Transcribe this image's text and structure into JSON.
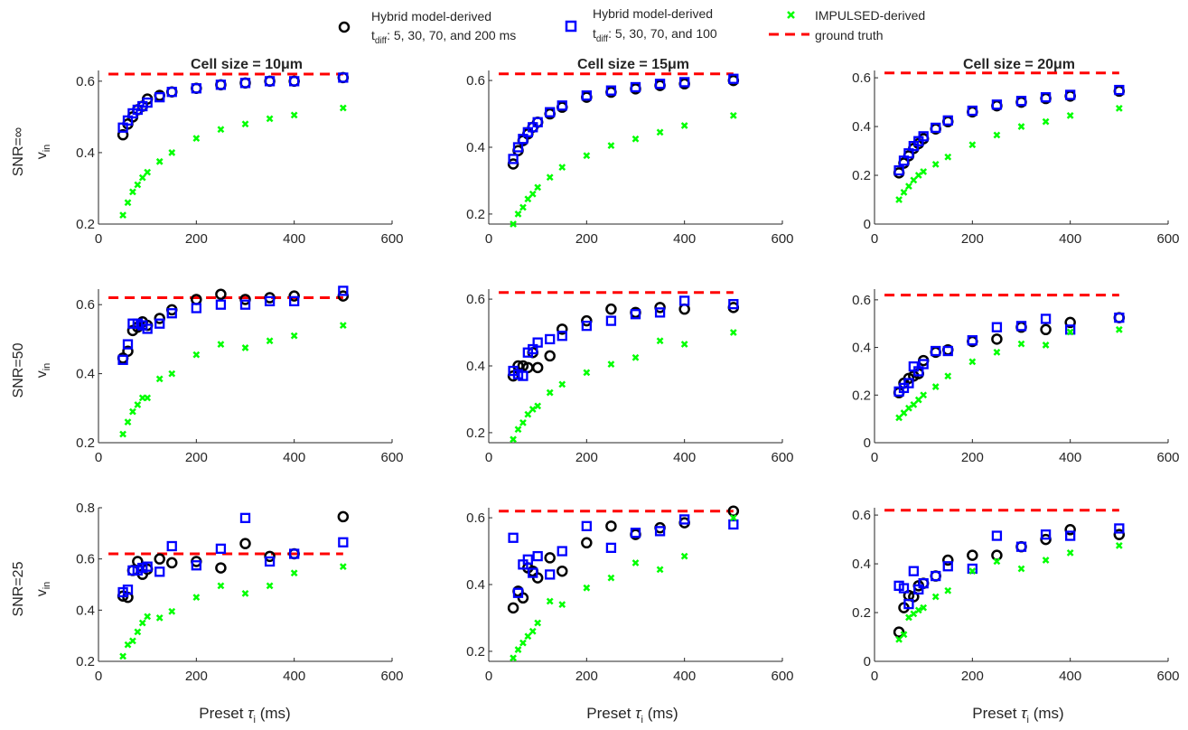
{
  "legend": {
    "items": [
      {
        "marker": "circle",
        "color": "#000000",
        "line1": "Hybrid model-derived",
        "line2_prefix": "t",
        "line2_sub": "diff",
        "line2_rest": ": 5, 30, 70, and 200 ms"
      },
      {
        "marker": "square",
        "color": "#0000ff",
        "line1": "Hybrid model-derived",
        "line2_prefix": "t",
        "line2_sub": "diff",
        "line2_rest": ": 5, 30, 70, and 100"
      },
      {
        "marker": "x",
        "color": "#00ff00",
        "line1": "IMPULSED-derived",
        "line2_prefix": "",
        "line2_sub": "",
        "line2_rest": ""
      },
      {
        "marker": "dash",
        "color": "#ff0000",
        "line1": "ground truth",
        "line2_prefix": "",
        "line2_sub": "",
        "line2_rest": ""
      }
    ]
  },
  "column_titles": [
    {
      "prefix": "Cell size = ",
      "value": "10",
      "unit": "μm"
    },
    {
      "prefix": "Cell size = ",
      "value": "15",
      "unit": "μm"
    },
    {
      "prefix": "Cell size = ",
      "value": "20",
      "unit": "μm"
    }
  ],
  "row_labels": [
    "SNR=∞",
    "SNR=50",
    "SNR=25"
  ],
  "ylabel": {
    "main": "v",
    "sub": "in"
  },
  "xlabel": {
    "main": "Preset ",
    "greek": "τ",
    "sub": "i",
    "rest": " (ms)"
  },
  "colors": {
    "hybrid200": "#000000",
    "hybrid100": "#0000ff",
    "impulsed": "#00ff00",
    "truth": "#ff0000",
    "axis": "#262626"
  },
  "chart_data": {
    "type": "scatter",
    "x": [
      50,
      60,
      70,
      80,
      90,
      100,
      125,
      150,
      200,
      250,
      300,
      350,
      400,
      500
    ],
    "xlim": [
      0,
      600
    ],
    "xticks": [
      0,
      200,
      400,
      600
    ],
    "ground_truth": 0.62,
    "ground_truth_x": [
      50,
      500
    ],
    "panels": [
      {
        "row": 0,
        "col": 0,
        "ylim": [
          0.2,
          0.63
        ],
        "yticks": [
          0.2,
          0.4,
          0.6
        ],
        "series": [
          {
            "name": "Hybrid model-derived (t_diff: 5, 30, 70, and 200 ms)",
            "marker": "circle",
            "values": [
              0.45,
              0.48,
              0.5,
              0.52,
              0.53,
              0.55,
              0.56,
              0.57,
              0.58,
              0.59,
              0.595,
              0.6,
              0.6,
              0.61
            ]
          },
          {
            "name": "Hybrid model-derived (t_diff: 5, 30, 70, and 100)",
            "marker": "square",
            "values": [
              0.47,
              0.49,
              0.51,
              0.52,
              0.53,
              0.54,
              0.555,
              0.57,
              0.58,
              0.59,
              0.595,
              0.6,
              0.6,
              0.61
            ]
          },
          {
            "name": "IMPULSED-derived",
            "marker": "x",
            "values": [
              0.225,
              0.26,
              0.29,
              0.31,
              0.33,
              0.345,
              0.375,
              0.4,
              0.44,
              0.465,
              0.48,
              0.495,
              0.505,
              0.525
            ]
          }
        ]
      },
      {
        "row": 0,
        "col": 1,
        "ylim": [
          0.17,
          0.63
        ],
        "yticks": [
          0.2,
          0.4,
          0.6
        ],
        "series": [
          {
            "name": "Hybrid model-derived (t_diff: 5, 30, 70, and 200 ms)",
            "marker": "circle",
            "values": [
              0.35,
              0.39,
              0.42,
              0.44,
              0.46,
              0.475,
              0.5,
              0.52,
              0.55,
              0.565,
              0.575,
              0.585,
              0.59,
              0.6
            ]
          },
          {
            "name": "Hybrid model-derived (t_diff: 5, 30, 70, and 100)",
            "marker": "square",
            "values": [
              0.365,
              0.4,
              0.425,
              0.445,
              0.46,
              0.475,
              0.505,
              0.525,
              0.555,
              0.57,
              0.58,
              0.59,
              0.595,
              0.605
            ]
          },
          {
            "name": "IMPULSED-derived",
            "marker": "x",
            "values": [
              0.17,
              0.2,
              0.22,
              0.245,
              0.26,
              0.28,
              0.31,
              0.34,
              0.375,
              0.405,
              0.425,
              0.445,
              0.465,
              0.495
            ]
          }
        ]
      },
      {
        "row": 0,
        "col": 2,
        "ylim": [
          0,
          0.63
        ],
        "yticks": [
          0,
          0.2,
          0.4,
          0.6
        ],
        "series": [
          {
            "name": "Hybrid model-derived (t_diff: 5, 30, 70, and 200 ms)",
            "marker": "circle",
            "values": [
              0.21,
              0.25,
              0.28,
              0.31,
              0.33,
              0.35,
              0.39,
              0.42,
              0.46,
              0.485,
              0.5,
              0.515,
              0.525,
              0.545
            ]
          },
          {
            "name": "Hybrid model-derived (t_diff: 5, 30, 70, and 100)",
            "marker": "square",
            "values": [
              0.22,
              0.26,
              0.29,
              0.32,
              0.34,
              0.36,
              0.395,
              0.425,
              0.465,
              0.49,
              0.505,
              0.52,
              0.53,
              0.55
            ]
          },
          {
            "name": "IMPULSED-derived",
            "marker": "x",
            "values": [
              0.1,
              0.13,
              0.155,
              0.18,
              0.2,
              0.215,
              0.245,
              0.275,
              0.325,
              0.365,
              0.4,
              0.42,
              0.445,
              0.475
            ]
          }
        ]
      },
      {
        "row": 1,
        "col": 0,
        "ylim": [
          0.2,
          0.645
        ],
        "yticks": [
          0.2,
          0.4,
          0.6
        ],
        "series": [
          {
            "name": "Hybrid model-derived (t_diff: 5, 30, 70, and 200 ms)",
            "marker": "circle",
            "values": [
              0.445,
              0.465,
              0.525,
              0.535,
              0.55,
              0.54,
              0.56,
              0.585,
              0.615,
              0.63,
              0.615,
              0.62,
              0.625,
              0.625
            ]
          },
          {
            "name": "Hybrid model-derived (t_diff: 5, 30, 70, and 100)",
            "marker": "square",
            "values": [
              0.44,
              0.485,
              0.545,
              0.545,
              0.54,
              0.53,
              0.545,
              0.575,
              0.59,
              0.6,
              0.6,
              0.61,
              0.61,
              0.64
            ]
          },
          {
            "name": "IMPULSED-derived",
            "marker": "x",
            "values": [
              0.225,
              0.26,
              0.29,
              0.31,
              0.33,
              0.33,
              0.385,
              0.4,
              0.455,
              0.485,
              0.475,
              0.495,
              0.51,
              0.54
            ]
          }
        ]
      },
      {
        "row": 1,
        "col": 1,
        "ylim": [
          0.17,
          0.63
        ],
        "yticks": [
          0.2,
          0.4,
          0.6
        ],
        "series": [
          {
            "name": "Hybrid model-derived (t_diff: 5, 30, 70, and 200 ms)",
            "marker": "circle",
            "values": [
              0.37,
              0.4,
              0.4,
              0.395,
              0.44,
              0.395,
              0.43,
              0.51,
              0.535,
              0.57,
              0.56,
              0.575,
              0.57,
              0.575
            ]
          },
          {
            "name": "Hybrid model-derived (t_diff: 5, 30, 70, and 100)",
            "marker": "square",
            "values": [
              0.385,
              0.375,
              0.37,
              0.44,
              0.45,
              0.47,
              0.48,
              0.49,
              0.52,
              0.535,
              0.555,
              0.56,
              0.595,
              0.585
            ]
          },
          {
            "name": "IMPULSED-derived",
            "marker": "x",
            "values": [
              0.18,
              0.21,
              0.23,
              0.255,
              0.27,
              0.28,
              0.32,
              0.345,
              0.38,
              0.405,
              0.425,
              0.475,
              0.465,
              0.5
            ]
          }
        ]
      },
      {
        "row": 1,
        "col": 2,
        "ylim": [
          0,
          0.645
        ],
        "yticks": [
          0,
          0.2,
          0.4,
          0.6
        ],
        "series": [
          {
            "name": "Hybrid model-derived (t_diff: 5, 30, 70, and 200 ms)",
            "marker": "circle",
            "values": [
              0.21,
              0.25,
              0.27,
              0.28,
              0.29,
              0.345,
              0.38,
              0.39,
              0.425,
              0.435,
              0.485,
              0.475,
              0.505,
              0.525
            ]
          },
          {
            "name": "Hybrid model-derived (t_diff: 5, 30, 70, and 100)",
            "marker": "square",
            "values": [
              0.215,
              0.23,
              0.25,
              0.32,
              0.3,
              0.33,
              0.385,
              0.385,
              0.43,
              0.485,
              0.49,
              0.52,
              0.475,
              0.525
            ]
          },
          {
            "name": "IMPULSED-derived",
            "marker": "x",
            "values": [
              0.105,
              0.125,
              0.145,
              0.16,
              0.18,
              0.2,
              0.235,
              0.28,
              0.34,
              0.38,
              0.415,
              0.41,
              0.465,
              0.475
            ]
          }
        ]
      },
      {
        "row": 2,
        "col": 0,
        "ylim": [
          0.2,
          0.8
        ],
        "yticks": [
          0.2,
          0.4,
          0.6,
          0.8
        ],
        "series": [
          {
            "name": "Hybrid model-derived (t_diff: 5, 30, 70, and 200 ms)",
            "marker": "circle",
            "values": [
              0.455,
              0.45,
              0.555,
              0.59,
              0.54,
              0.56,
              0.6,
              0.585,
              0.59,
              0.565,
              0.66,
              0.61,
              0.62,
              0.765
            ]
          },
          {
            "name": "Hybrid model-derived (t_diff: 5, 30, 70, and 100)",
            "marker": "square",
            "values": [
              0.47,
              0.48,
              0.555,
              0.555,
              0.565,
              0.57,
              0.55,
              0.65,
              0.575,
              0.64,
              0.76,
              0.59,
              0.62,
              0.665
            ]
          },
          {
            "name": "IMPULSED-derived",
            "marker": "x",
            "values": [
              0.22,
              0.265,
              0.28,
              0.315,
              0.35,
              0.375,
              0.37,
              0.395,
              0.45,
              0.495,
              0.465,
              0.495,
              0.545,
              0.57
            ]
          }
        ]
      },
      {
        "row": 2,
        "col": 1,
        "ylim": [
          0.17,
          0.63
        ],
        "yticks": [
          0.2,
          0.4,
          0.6
        ],
        "series": [
          {
            "name": "Hybrid model-derived (t_diff: 5, 30, 70, and 200 ms)",
            "marker": "circle",
            "values": [
              0.33,
              0.38,
              0.36,
              0.45,
              0.44,
              0.42,
              0.48,
              0.44,
              0.525,
              0.575,
              0.55,
              0.57,
              0.585,
              0.62
            ]
          },
          {
            "name": "Hybrid model-derived (t_diff: 5, 30, 70, and 100)",
            "marker": "square",
            "values": [
              0.54,
              0.375,
              0.46,
              0.475,
              0.435,
              0.485,
              0.43,
              0.5,
              0.575,
              0.51,
              0.555,
              0.56,
              0.595,
              0.58
            ]
          },
          {
            "name": "IMPULSED-derived",
            "marker": "x",
            "values": [
              0.18,
              0.205,
              0.225,
              0.245,
              0.26,
              0.285,
              0.35,
              0.34,
              0.39,
              0.42,
              0.465,
              0.445,
              0.485,
              0.6
            ]
          }
        ]
      },
      {
        "row": 2,
        "col": 2,
        "ylim": [
          0,
          0.63
        ],
        "yticks": [
          0,
          0.2,
          0.4,
          0.6
        ],
        "series": [
          {
            "name": "Hybrid model-derived (t_diff: 5, 30, 70, and 200 ms)",
            "marker": "circle",
            "values": [
              0.12,
              0.22,
              0.27,
              0.265,
              0.31,
              0.32,
              0.35,
              0.415,
              0.435,
              0.435,
              0.47,
              0.5,
              0.54,
              0.52
            ]
          },
          {
            "name": "Hybrid model-derived (t_diff: 5, 30, 70, and 100)",
            "marker": "square",
            "values": [
              0.31,
              0.3,
              0.235,
              0.37,
              0.295,
              0.32,
              0.35,
              0.39,
              0.38,
              0.515,
              0.47,
              0.52,
              0.515,
              0.545
            ]
          },
          {
            "name": "IMPULSED-derived",
            "marker": "x",
            "values": [
              0.09,
              0.11,
              0.18,
              0.195,
              0.21,
              0.22,
              0.265,
              0.29,
              0.37,
              0.41,
              0.38,
              0.415,
              0.445,
              0.475
            ]
          }
        ]
      }
    ]
  }
}
